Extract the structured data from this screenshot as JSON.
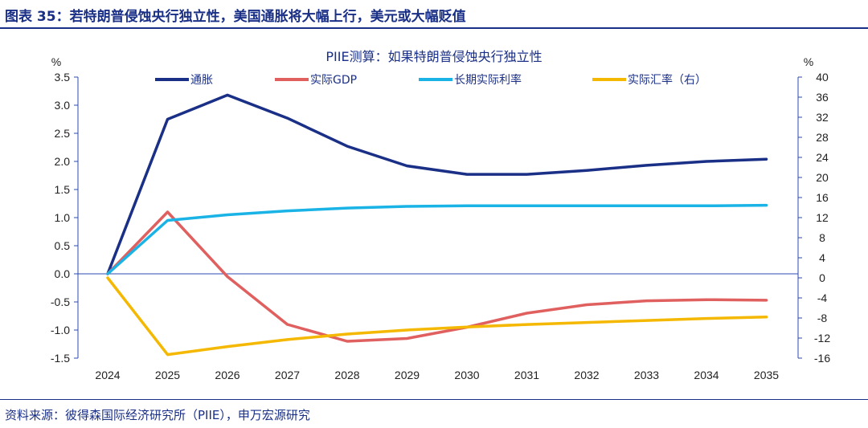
{
  "figure": {
    "title": "图表 35：若特朗普侵蚀央行独立性，美国通胀将大幅上行，美元或大幅贬值",
    "source": "资料来源：彼得森国际经济研究所（PIIE），申万宏源研究"
  },
  "chart_data": {
    "type": "line",
    "title": "PIIE测算：如果特朗普侵蚀央行独立性",
    "ylabel_left": "%",
    "ylabel_right": "%",
    "ylim_left": [
      -1.5,
      3.5
    ],
    "ylim_right": [
      -16,
      40
    ],
    "yticks_left": [
      "3.5",
      "3.0",
      "2.5",
      "2.0",
      "1.5",
      "1.0",
      "0.5",
      "0.0",
      "-0.5",
      "-1.0",
      "-1.5"
    ],
    "yticks_right": [
      "40",
      "36",
      "32",
      "28",
      "24",
      "20",
      "16",
      "12",
      "8",
      "4",
      "0",
      "-4",
      "-8",
      "-12",
      "-16"
    ],
    "x": [
      "2024",
      "2025",
      "2026",
      "2027",
      "2028",
      "2029",
      "2030",
      "2031",
      "2032",
      "2033",
      "2034",
      "2035"
    ],
    "grid": false,
    "legend_position": "top",
    "series": [
      {
        "name": "通胀",
        "axis": "left",
        "color": "#1a2f86",
        "values": [
          0.0,
          2.75,
          3.18,
          2.77,
          2.27,
          1.92,
          1.77,
          1.77,
          1.84,
          1.93,
          2.0,
          2.04
        ]
      },
      {
        "name": "实际GDP",
        "axis": "left",
        "color": "#e0605f",
        "values": [
          0.0,
          1.1,
          -0.05,
          -0.9,
          -1.2,
          -1.15,
          -0.95,
          -0.7,
          -0.55,
          -0.48,
          -0.46,
          -0.47
        ]
      },
      {
        "name": "长期实际利率",
        "axis": "left",
        "color": "#1ab3e6",
        "values": [
          0.0,
          0.95,
          1.05,
          1.12,
          1.17,
          1.2,
          1.21,
          1.21,
          1.21,
          1.21,
          1.21,
          1.22
        ]
      },
      {
        "name": "实际汇率（右）",
        "axis": "right",
        "color": "#f5b800",
        "values": [
          0.0,
          -15.3,
          -13.7,
          -12.3,
          -11.2,
          -10.4,
          -9.8,
          -9.3,
          -8.9,
          -8.5,
          -8.1,
          -7.8
        ]
      }
    ]
  }
}
